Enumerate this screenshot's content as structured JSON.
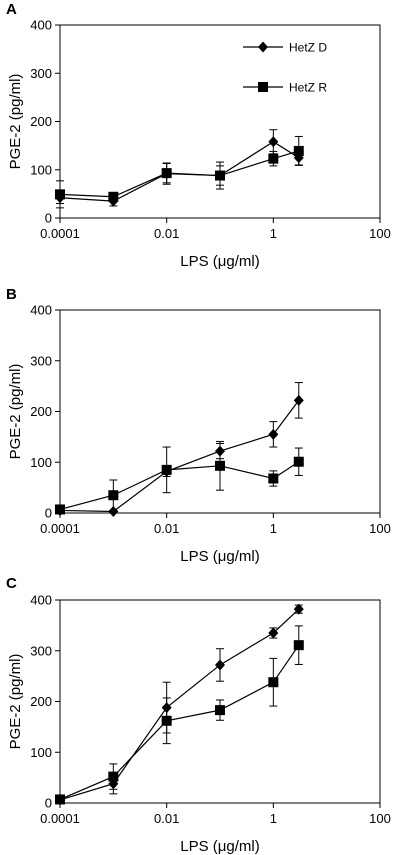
{
  "chart_data": [
    {
      "panel": "A",
      "type": "line",
      "x_scale": "log",
      "x": [
        0.0001,
        0.001,
        0.01,
        0.1,
        1,
        3
      ],
      "xlim": [
        0.0001,
        100
      ],
      "ylim": [
        0,
        400
      ],
      "xticks": [
        "0.0001",
        "0.01",
        "1",
        "100"
      ],
      "yticks": [
        "0",
        "100",
        "200",
        "300",
        "400"
      ],
      "xlabel": "LPS (μg/ml)",
      "ylabel": "PGE-2 (pg/ml)",
      "grid": false,
      "legend": "top-right",
      "series": [
        {
          "name": "HetZ D",
          "marker": "diamond",
          "values": [
            42,
            35,
            92,
            88,
            158,
            125
          ],
          "err": [
            12,
            10,
            22,
            20,
            25,
            15
          ]
        },
        {
          "name": "HetZ R",
          "marker": "square",
          "values": [
            49,
            44,
            93,
            88,
            123,
            139
          ],
          "err": [
            28,
            8,
            20,
            28,
            15,
            30
          ]
        }
      ]
    },
    {
      "panel": "B",
      "type": "line",
      "x_scale": "log",
      "x": [
        0.0001,
        0.001,
        0.01,
        0.1,
        1,
        3
      ],
      "xlim": [
        0.0001,
        100
      ],
      "ylim": [
        0,
        400
      ],
      "xticks": [
        "0.0001",
        "0.01",
        "1",
        "100"
      ],
      "yticks": [
        "0",
        "100",
        "200",
        "300",
        "400"
      ],
      "xlabel": "LPS (μg/ml)",
      "ylabel": "PGE-2 (pg/ml)",
      "grid": false,
      "series": [
        {
          "marker": "diamond",
          "values": [
            5,
            3,
            82,
            122,
            155,
            222
          ],
          "err": [
            3,
            2,
            10,
            15,
            25,
            35
          ]
        },
        {
          "marker": "square",
          "values": [
            7,
            35,
            85,
            93,
            68,
            101
          ],
          "err": [
            3,
            30,
            45,
            48,
            15,
            27
          ]
        }
      ]
    },
    {
      "panel": "C",
      "type": "line",
      "x_scale": "log",
      "x": [
        0.0001,
        0.001,
        0.01,
        0.1,
        1,
        3
      ],
      "xlim": [
        0.0001,
        100
      ],
      "ylim": [
        0,
        400
      ],
      "xticks": [
        "0.0001",
        "0.01",
        "1",
        "100"
      ],
      "yticks": [
        "0",
        "100",
        "200",
        "300",
        "400"
      ],
      "xlabel": "LPS (μg/ml)",
      "ylabel": "PGE-2 (pg/ml)",
      "grid": false,
      "series": [
        {
          "marker": "diamond",
          "values": [
            6,
            38,
            188,
            272,
            335,
            382
          ],
          "err": [
            3,
            20,
            50,
            32,
            10,
            8
          ]
        },
        {
          "marker": "square",
          "values": [
            7,
            52,
            162,
            183,
            238,
            311
          ],
          "err": [
            3,
            25,
            45,
            20,
            47,
            38
          ]
        }
      ]
    }
  ]
}
